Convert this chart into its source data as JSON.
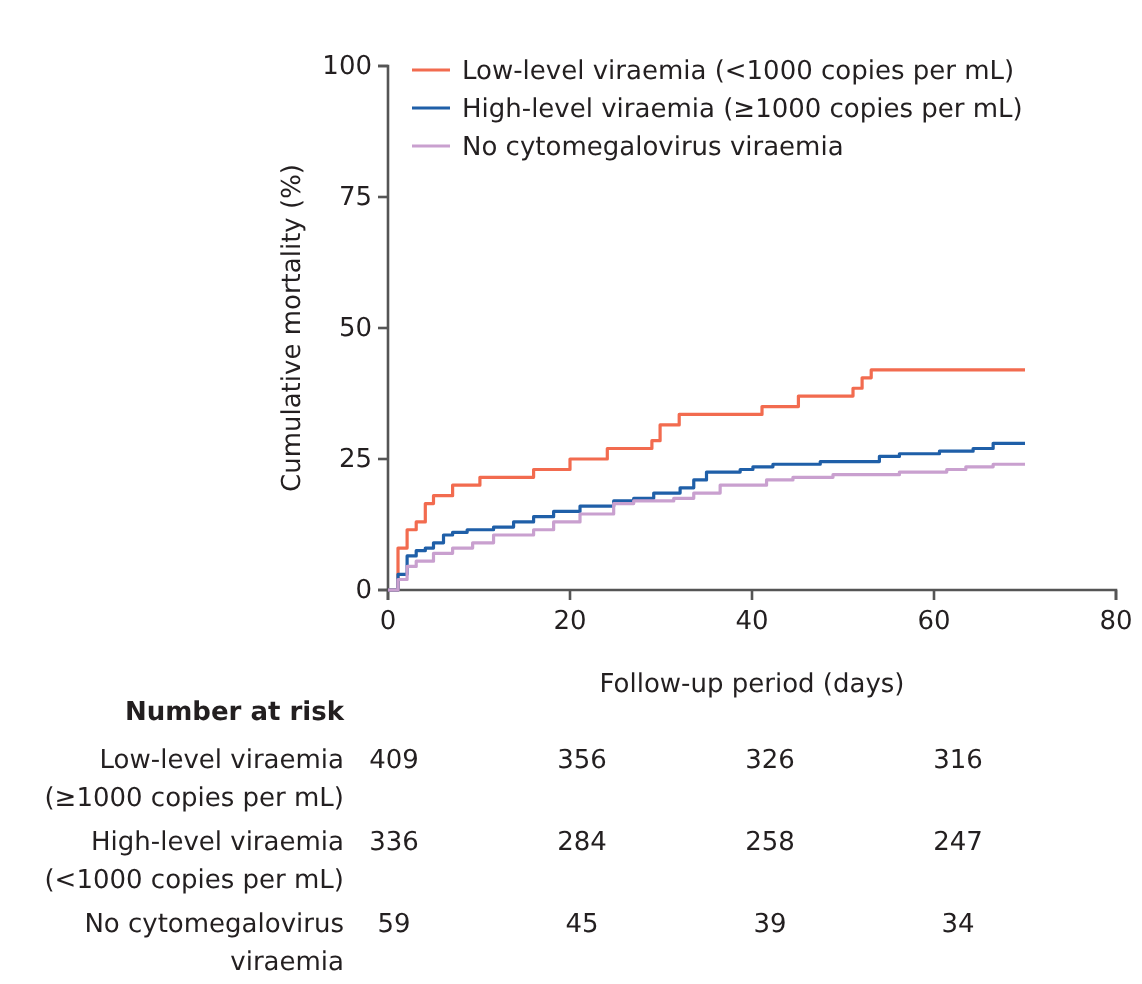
{
  "chart_data": {
    "type": "step",
    "xlabel": "Follow-up period (days)",
    "ylabel": "Cumulative mortality (%)",
    "xlim": [
      0,
      80
    ],
    "xticks": [
      0,
      20,
      40,
      60,
      80
    ],
    "ylim": [
      0,
      100
    ],
    "yticks": [
      0,
      25,
      50,
      75,
      100
    ],
    "grid": false,
    "legend": "top left",
    "marker": "none",
    "line_style": "solid",
    "series": [
      {
        "name": "Low-level viraemia (<1000 copies per mL)",
        "color": "#f26b4f",
        "x": [
          0,
          1.1,
          2.1,
          3.1,
          4.1,
          5,
          7.1,
          10.1,
          16,
          20,
          24.1,
          29,
          29.9,
          32,
          41.1,
          45.1,
          51.1,
          52.1,
          53.1,
          70
        ],
        "values": [
          0,
          8,
          11.5,
          13,
          16.5,
          18,
          20,
          21.5,
          23,
          25,
          27,
          28.5,
          31.5,
          33.5,
          35,
          37,
          38.5,
          40.5,
          42,
          42
        ]
      },
      {
        "name": "High-level viraemia (≥1000 copies per mL)",
        "color": "#1f5fa8",
        "x": [
          0,
          1.1,
          2.1,
          3.1,
          4.1,
          5,
          6.1,
          7.1,
          8.7,
          11.6,
          13.8,
          16,
          18.2,
          21.1,
          24.8,
          27,
          29.2,
          32.1,
          33.6,
          35,
          38.7,
          40.1,
          42.3,
          47.5,
          54,
          56.2,
          60.6,
          64.3,
          66.5,
          70
        ],
        "values": [
          0,
          3,
          6.5,
          7.5,
          8,
          9,
          10.5,
          11,
          11.5,
          12,
          13,
          14,
          15,
          16,
          17,
          17.5,
          18.5,
          19.5,
          21,
          22.5,
          23,
          23.5,
          24,
          24.5,
          25.5,
          26,
          26.5,
          27,
          28,
          28
        ]
      },
      {
        "name": "No cytomegalovirus viraemia",
        "color": "#c9a0cf",
        "x": [
          0,
          1.1,
          2.1,
          3.1,
          5,
          7.1,
          9.3,
          11.6,
          16,
          18.2,
          21.1,
          24.8,
          27,
          31.4,
          33.6,
          36.5,
          41.6,
          44.5,
          48.9,
          56.2,
          61.4,
          63.5,
          66.5,
          70
        ],
        "values": [
          0,
          2,
          4.5,
          5.5,
          7,
          8,
          9,
          10.5,
          11.5,
          13,
          14.5,
          16.5,
          17,
          17.5,
          18.5,
          20,
          21,
          21.5,
          22,
          22.5,
          23,
          23.5,
          24,
          24
        ]
      }
    ],
    "annotations": [
      "Number at risk",
      "Low-level viraemia",
      "(≥1000 copies per mL)",
      "409",
      "356",
      "326",
      "316",
      "High-level viraemia",
      "(<1000 copies per mL)",
      "336",
      "284",
      "258",
      "247",
      "No cytomegalovirus",
      "viraemia",
      "59",
      "45",
      "39",
      "34"
    ]
  }
}
